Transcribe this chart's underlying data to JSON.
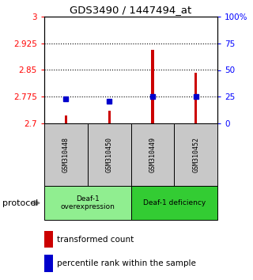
{
  "title": "GDS3490 / 1447494_at",
  "samples": [
    "GSM310448",
    "GSM310450",
    "GSM310449",
    "GSM310452"
  ],
  "red_values": [
    2.722,
    2.735,
    2.907,
    2.842
  ],
  "blue_values": [
    2.769,
    2.763,
    2.776,
    2.776
  ],
  "ylim_left": [
    2.7,
    3.0
  ],
  "ylim_right": [
    0,
    100
  ],
  "yticks_left": [
    2.7,
    2.775,
    2.85,
    2.925,
    3.0
  ],
  "yticks_right": [
    0,
    25,
    50,
    75,
    100
  ],
  "ytick_labels_left": [
    "2.7",
    "2.775",
    "2.85",
    "2.925",
    "3"
  ],
  "ytick_labels_right": [
    "0",
    "25",
    "50",
    "75",
    "100%"
  ],
  "hlines": [
    2.775,
    2.85,
    2.925
  ],
  "groups": [
    {
      "label": "Deaf-1\noverexpression",
      "indices": [
        0,
        1
      ],
      "color": "#90EE90"
    },
    {
      "label": "Deaf-1 deficiency",
      "indices": [
        2,
        3
      ],
      "color": "#33CC33"
    }
  ],
  "protocol_label": "protocol",
  "legend_red": "transformed count",
  "legend_blue": "percentile rank within the sample",
  "bar_color_red": "#CC0000",
  "bar_color_blue": "#0000CC",
  "bar_width": 0.06,
  "blue_marker_size": 5,
  "sample_bg": "#C8C8C8"
}
